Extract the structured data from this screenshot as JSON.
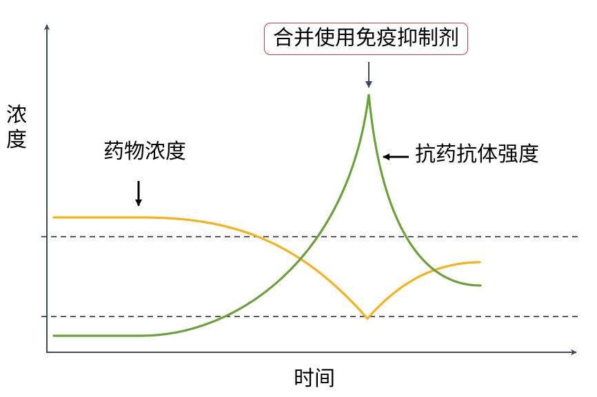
{
  "diagram": {
    "y_axis_label": "浓度",
    "x_axis_label": "时间",
    "callout": "合并使用免疫抑制剂",
    "series": [
      {
        "label": "药物浓度",
        "color": "#F6B11B"
      },
      {
        "label": "抗药抗体强度",
        "color": "#6AA13A"
      }
    ]
  }
}
